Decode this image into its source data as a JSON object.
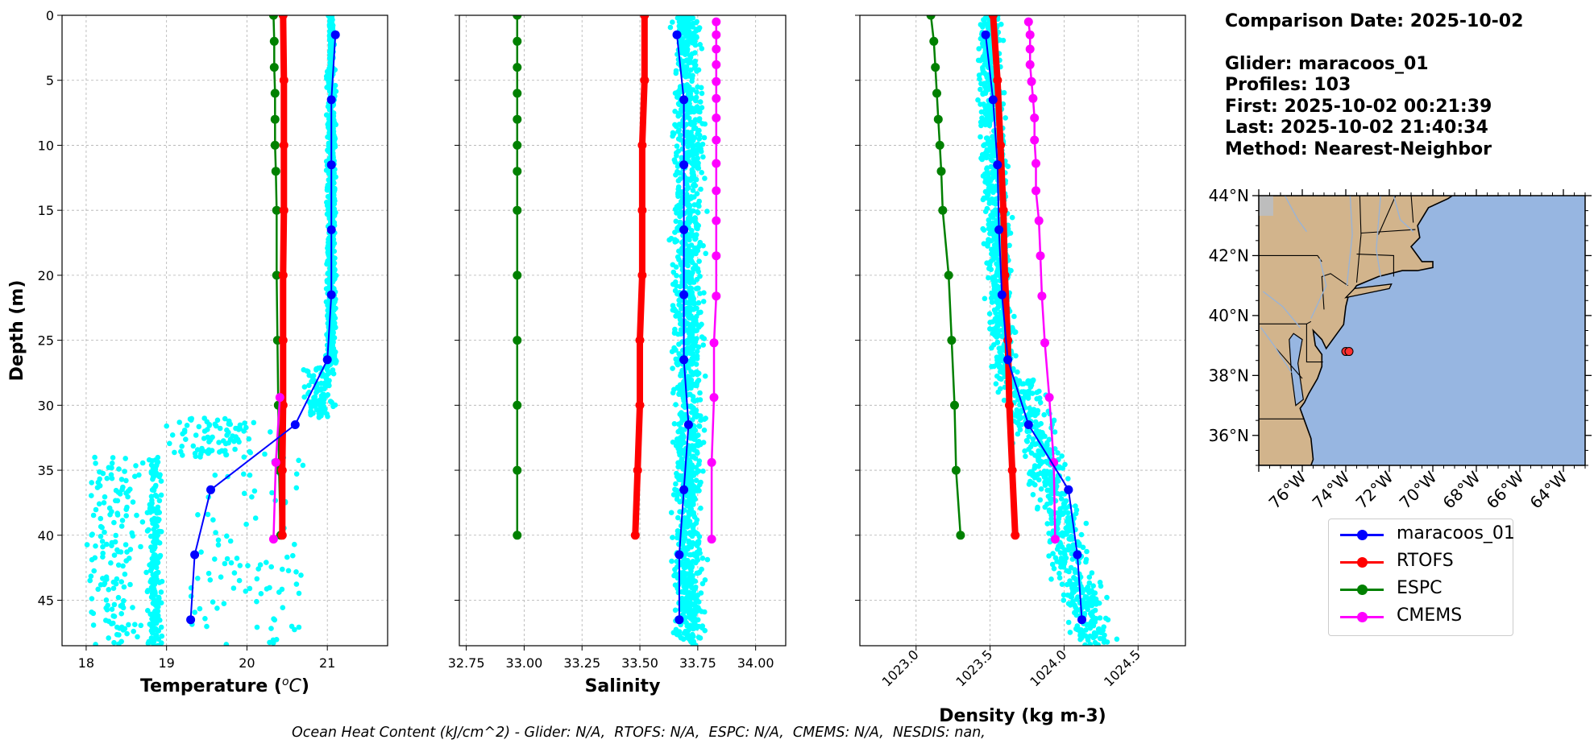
{
  "info": {
    "comparison_date": "Comparison Date: 2025-10-02",
    "glider": "Glider: maracoos_01",
    "profiles": "Profiles: 103",
    "first": "First: 2025-10-02 00:21:39",
    "last": "Last: 2025-10-02 21:40:34",
    "method": "Method: Nearest-Neighbor"
  },
  "footer": "Ocean Heat Content (kJ/cm^2) - Glider: N/A,  RTOFS: N/A,  ESPC: N/A,  CMEMS: N/A,  NESDIS: nan,",
  "colors": {
    "glider": "#0000ff",
    "rtofs": "#ff0000",
    "espc": "#008000",
    "cmems": "#ff00ff",
    "scatter": "#00ffff",
    "land": "#d2b48c",
    "ocean": "#97b6e1"
  },
  "legend": [
    {
      "label": "maracoos_01",
      "color": "#0000ff"
    },
    {
      "label": "RTOFS",
      "color": "#ff0000"
    },
    {
      "label": "ESPC",
      "color": "#008000"
    },
    {
      "label": "CMEMS",
      "color": "#ff00ff"
    }
  ],
  "chart_data": [
    {
      "type": "line",
      "xlabel": "Temperature (°C)",
      "ylabel": "Depth (m)",
      "xlim": [
        17.7,
        21.75
      ],
      "ylim": [
        48.5,
        0
      ],
      "xticks": [
        "18",
        "19",
        "20",
        "21"
      ],
      "yticks": [
        "0",
        "5",
        "10",
        "15",
        "20",
        "25",
        "30",
        "35",
        "40",
        "45"
      ],
      "grid": true,
      "series": [
        {
          "name": "maracoos_01",
          "depth": [
            1.5,
            6.5,
            11.5,
            16.5,
            21.5,
            26.5,
            31.5,
            36.5,
            41.5,
            46.5
          ],
          "values": [
            21.1,
            21.05,
            21.05,
            21.05,
            21.05,
            21.0,
            20.6,
            19.55,
            19.35,
            19.3
          ]
        },
        {
          "name": "RTOFS",
          "depth": [
            0,
            5,
            10,
            15,
            20,
            25,
            30,
            35,
            40
          ],
          "values": [
            20.45,
            20.46,
            20.46,
            20.46,
            20.45,
            20.45,
            20.45,
            20.44,
            20.44
          ]
        },
        {
          "name": "ESPC",
          "depth": [
            0,
            2,
            4,
            6,
            8,
            10,
            12,
            15,
            20,
            25,
            30,
            35,
            40
          ],
          "values": [
            20.33,
            20.34,
            20.34,
            20.35,
            20.35,
            20.35,
            20.36,
            20.37,
            20.37,
            20.38,
            20.39,
            20.4,
            20.42
          ]
        },
        {
          "name": "CMEMS",
          "depth": [
            29.4,
            34.4,
            40.3
          ],
          "values": [
            20.41,
            20.36,
            20.33
          ]
        }
      ]
    },
    {
      "type": "line",
      "xlabel": "Salinity",
      "xlim": [
        32.72,
        34.13
      ],
      "ylim": [
        48.5,
        0
      ],
      "xticks": [
        "32.75",
        "33.00",
        "33.25",
        "33.50",
        "33.75",
        "34.00"
      ],
      "grid": true,
      "series": [
        {
          "name": "maracoos_01",
          "depth": [
            1.5,
            6.5,
            11.5,
            16.5,
            21.5,
            26.5,
            31.5,
            36.5,
            41.5,
            46.5
          ],
          "values": [
            33.66,
            33.69,
            33.69,
            33.69,
            33.69,
            33.69,
            33.71,
            33.69,
            33.67,
            33.67
          ]
        },
        {
          "name": "RTOFS",
          "depth": [
            0,
            5,
            10,
            15,
            20,
            25,
            30,
            35,
            40
          ],
          "values": [
            33.52,
            33.52,
            33.51,
            33.51,
            33.51,
            33.5,
            33.5,
            33.49,
            33.48
          ]
        },
        {
          "name": "ESPC",
          "depth": [
            0,
            2,
            4,
            6,
            8,
            10,
            12,
            15,
            20,
            25,
            30,
            35,
            40
          ],
          "values": [
            32.97,
            32.97,
            32.97,
            32.97,
            32.97,
            32.97,
            32.97,
            32.97,
            32.97,
            32.97,
            32.97,
            32.97,
            32.97
          ]
        },
        {
          "name": "CMEMS",
          "depth": [
            0.5,
            1.5,
            2.6,
            3.8,
            5.1,
            6.4,
            7.9,
            9.6,
            11.4,
            13.5,
            15.8,
            18.5,
            21.6,
            25.2,
            29.4,
            34.4,
            40.3
          ],
          "values": [
            33.83,
            33.83,
            33.83,
            33.83,
            33.83,
            33.83,
            33.83,
            33.83,
            33.83,
            33.83,
            33.83,
            33.83,
            33.83,
            33.82,
            33.82,
            33.81,
            33.81
          ]
        }
      ]
    },
    {
      "type": "line",
      "xlabel": "Density (kg m-3)",
      "xlim": [
        1022.62,
        1024.82
      ],
      "ylim": [
        48.5,
        0
      ],
      "xticks": [
        "1023.0",
        "1023.5",
        "1024.0",
        "1024.5"
      ],
      "grid": true,
      "series": [
        {
          "name": "maracoos_01",
          "depth": [
            1.5,
            6.5,
            11.5,
            16.5,
            21.5,
            26.5,
            31.5,
            36.5,
            41.5,
            46.5
          ],
          "values": [
            1023.47,
            1023.52,
            1023.55,
            1023.56,
            1023.58,
            1023.62,
            1023.76,
            1024.03,
            1024.09,
            1024.12
          ]
        },
        {
          "name": "RTOFS",
          "depth": [
            0,
            5,
            10,
            15,
            20,
            25,
            30,
            35,
            40
          ],
          "values": [
            1023.52,
            1023.55,
            1023.57,
            1023.59,
            1023.6,
            1023.62,
            1023.63,
            1023.65,
            1023.67
          ]
        },
        {
          "name": "ESPC",
          "depth": [
            0,
            2,
            4,
            6,
            8,
            10,
            12,
            15,
            20,
            25,
            30,
            35,
            40
          ],
          "values": [
            1023.1,
            1023.12,
            1023.13,
            1023.14,
            1023.15,
            1023.16,
            1023.17,
            1023.18,
            1023.22,
            1023.24,
            1023.26,
            1023.27,
            1023.3
          ]
        },
        {
          "name": "CMEMS",
          "depth": [
            0.5,
            1.5,
            2.6,
            3.8,
            5.1,
            6.4,
            7.9,
            9.6,
            11.4,
            13.5,
            15.8,
            18.5,
            21.6,
            25.2,
            29.4,
            34.4,
            40.3
          ],
          "values": [
            1023.76,
            1023.77,
            1023.77,
            1023.77,
            1023.78,
            1023.79,
            1023.8,
            1023.8,
            1023.81,
            1023.81,
            1023.83,
            1023.84,
            1023.85,
            1023.87,
            1023.9,
            1023.93,
            1023.94
          ]
        }
      ]
    }
  ],
  "map": {
    "lat_ticks": [
      "44°N",
      "42°N",
      "40°N",
      "38°N",
      "36°N"
    ],
    "lon_ticks": [
      "76°W",
      "74°W",
      "72°W",
      "70°W",
      "68°W",
      "66°W",
      "64°W"
    ],
    "lat_range": [
      35,
      44
    ],
    "lon_range": [
      -78,
      -63
    ],
    "glider_position": {
      "lat": 38.8,
      "lon": -74.0
    }
  }
}
